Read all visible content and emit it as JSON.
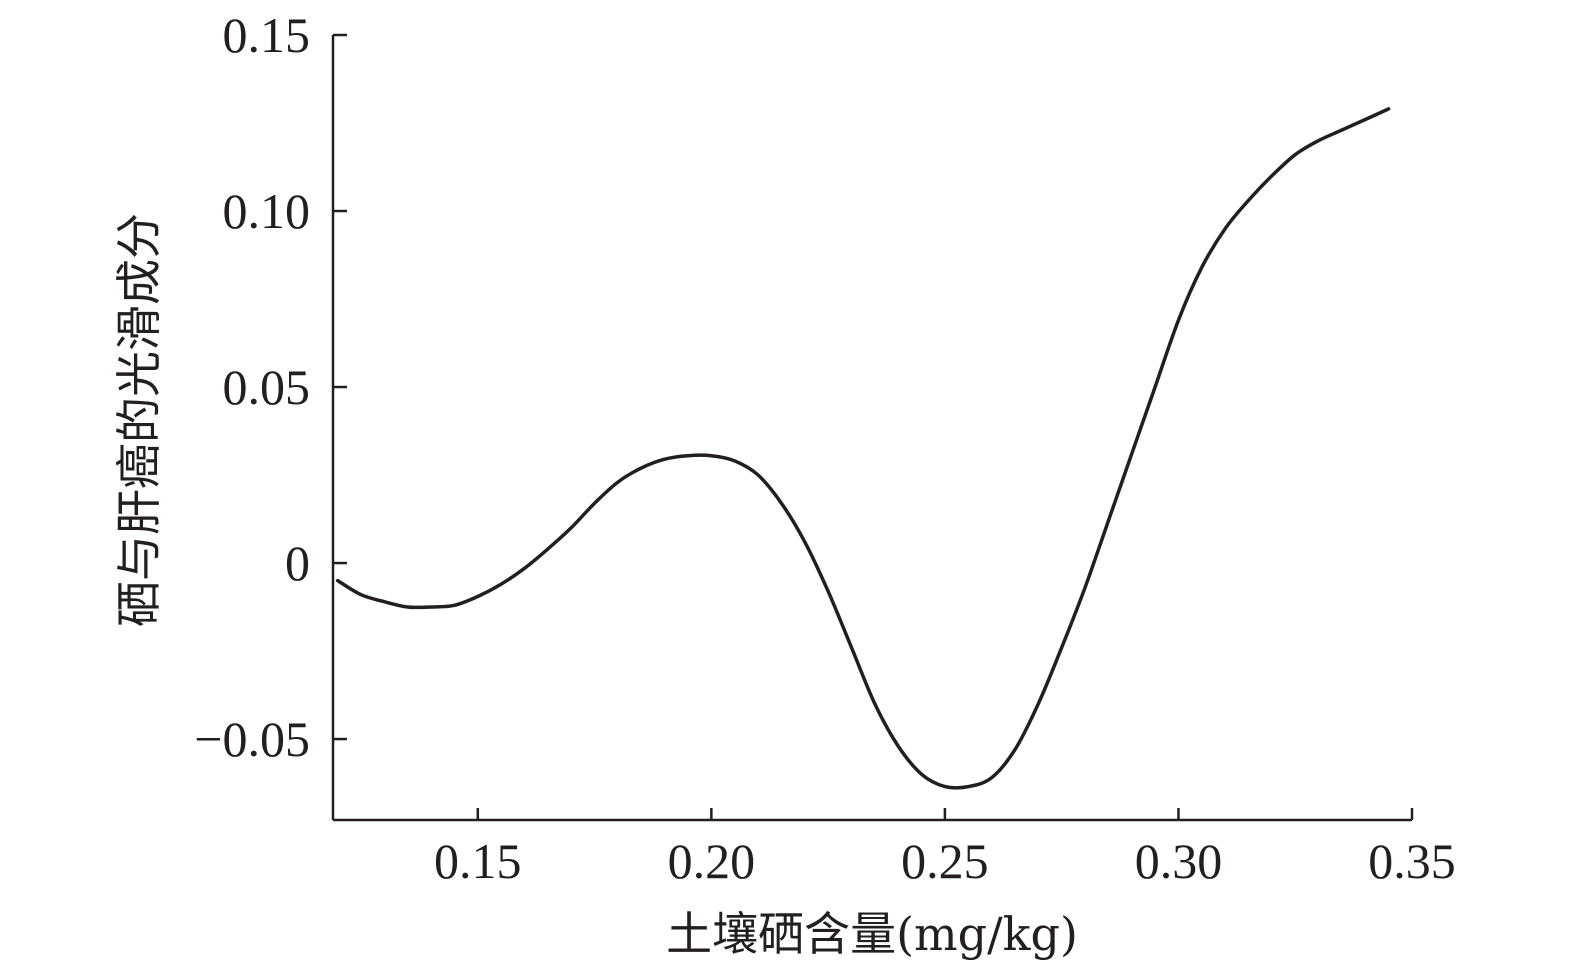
{
  "chart_data": {
    "type": "line",
    "xlabel": "土壤硒含量(mg/kg)",
    "ylabel": "硒与肝癌的光滑成分",
    "xlim": [
      0.119,
      0.35
    ],
    "ylim": [
      -0.073,
      0.15
    ],
    "x_ticks": [
      0.15,
      0.2,
      0.25,
      0.3,
      0.35
    ],
    "x_tick_labels": [
      "0.15",
      "0.20",
      "0.25",
      "0.30",
      "0.35"
    ],
    "y_ticks": [
      0.15,
      0.1,
      0.05,
      0,
      -0.05
    ],
    "y_tick_labels": [
      "0.15",
      "0.10",
      "0.05",
      "0",
      "−0.05"
    ],
    "grid": false,
    "legend": "none",
    "line_color": "#231f20",
    "series": [
      {
        "x": [
          0.12,
          0.125,
          0.13,
          0.135,
          0.14,
          0.145,
          0.15,
          0.155,
          0.16,
          0.165,
          0.17,
          0.175,
          0.18,
          0.185,
          0.19,
          0.195,
          0.2,
          0.205,
          0.21,
          0.215,
          0.22,
          0.225,
          0.23,
          0.235,
          0.24,
          0.245,
          0.25,
          0.255,
          0.26,
          0.265,
          0.27,
          0.275,
          0.28,
          0.285,
          0.29,
          0.295,
          0.3,
          0.305,
          0.31,
          0.315,
          0.32,
          0.325,
          0.33,
          0.335,
          0.34,
          0.345
        ],
        "values": [
          -0.005,
          -0.009,
          -0.011,
          -0.0125,
          -0.0125,
          -0.012,
          -0.0095,
          -0.006,
          -0.0015,
          0.004,
          0.01,
          0.017,
          0.023,
          0.027,
          0.0295,
          0.0305,
          0.0305,
          0.029,
          0.025,
          0.017,
          0.006,
          -0.008,
          -0.024,
          -0.04,
          -0.052,
          -0.06,
          -0.0635,
          -0.0635,
          -0.061,
          -0.053,
          -0.04,
          -0.024,
          -0.007,
          0.012,
          0.031,
          0.05,
          0.069,
          0.084,
          0.095,
          0.103,
          0.11,
          0.116,
          0.12,
          0.123,
          0.126,
          0.129
        ]
      }
    ]
  }
}
